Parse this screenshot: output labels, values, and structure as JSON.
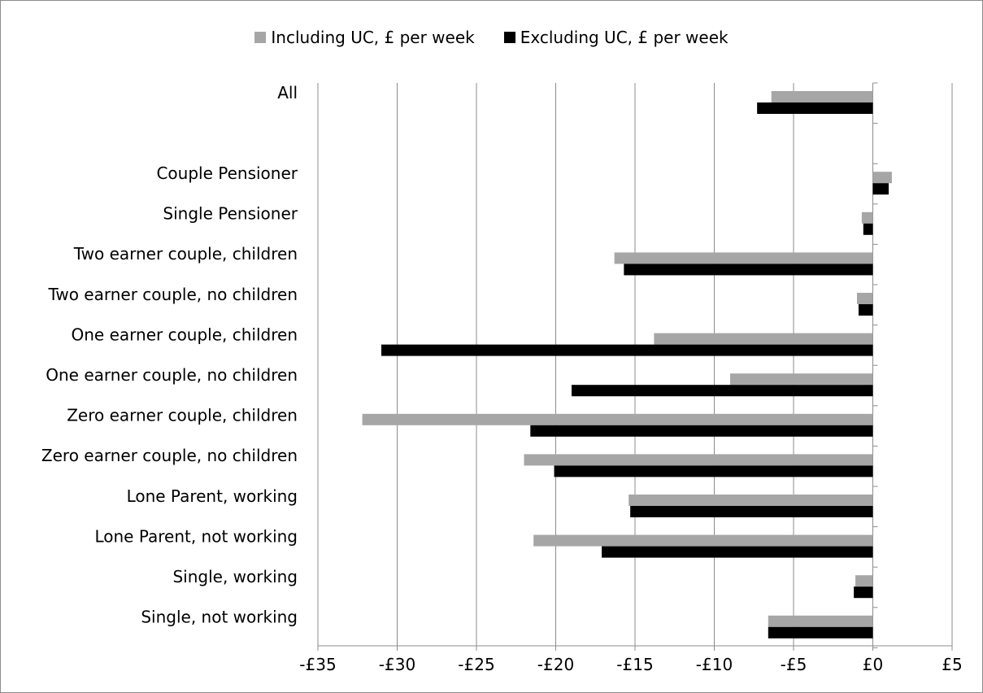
{
  "chart_data": {
    "type": "bar",
    "orientation": "horizontal",
    "categories": [
      "All",
      "",
      "Couple Pensioner",
      "Single Pensioner",
      "Two earner couple, children",
      "Two earner couple, no children",
      "One earner couple, children",
      "One earner couple, no children",
      "Zero earner couple, children",
      "Zero earner couple, no children",
      "Lone Parent, working",
      "Lone Parent, not working",
      "Single, working",
      "Single, not working"
    ],
    "series": [
      {
        "name": "Including UC, £ per week",
        "color": "#a6a6a6",
        "values": [
          -6.4,
          null,
          1.2,
          -0.7,
          -16.3,
          -1.0,
          -13.8,
          -9.0,
          -32.2,
          -22.0,
          -15.4,
          -21.4,
          -1.1,
          -6.6
        ]
      },
      {
        "name": "Excluding UC, £ per week",
        "color": "#000000",
        "values": [
          -7.3,
          null,
          1.0,
          -0.6,
          -15.7,
          -0.9,
          -31.0,
          -19.0,
          -21.6,
          -20.1,
          -15.3,
          -17.1,
          -1.2,
          -6.6
        ]
      }
    ],
    "xlim": [
      -35,
      5
    ],
    "xticks": [
      -35,
      -30,
      -25,
      -20,
      -15,
      -10,
      -5,
      0,
      5
    ],
    "xtick_labels": [
      "-£35",
      "-£30",
      "-£25",
      "-£20",
      "-£15",
      "-£10",
      "-£5",
      "£0",
      "£5"
    ],
    "grid": true,
    "legend_position": "top"
  }
}
